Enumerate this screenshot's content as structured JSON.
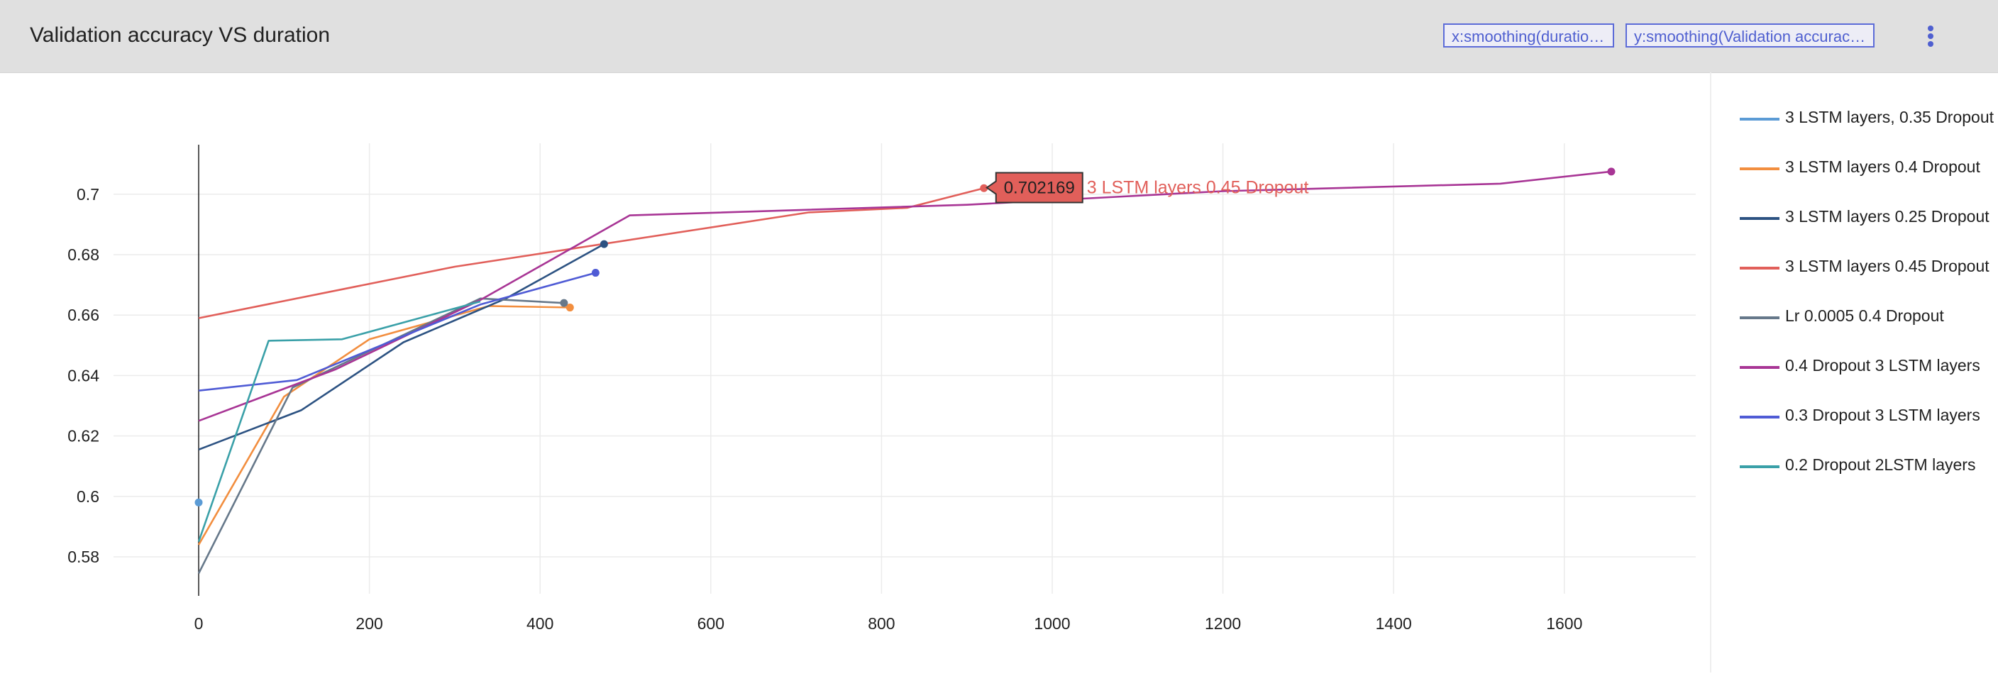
{
  "header": {
    "title": "Validation accuracy VS duration",
    "x_chip": "x:smoothing(duratio…",
    "y_chip": "y:smoothing(Validation accurac…",
    "menu_icon": "more-vert-icon"
  },
  "tooltip": {
    "value": "0.702169",
    "label": "3 LSTM layers 0.45 Dropout",
    "series_index": 3,
    "x": 920,
    "y": 0.702169
  },
  "chart_data": {
    "type": "line",
    "title": "Validation accuracy VS duration",
    "xlabel": "",
    "ylabel": "",
    "xlim": [
      -100,
      1760
    ],
    "ylim": [
      0.569,
      0.72
    ],
    "x_ticks": [
      0,
      200,
      400,
      600,
      800,
      1000,
      1200,
      1400,
      1600
    ],
    "y_ticks": [
      0.58,
      0.6,
      0.62,
      0.64,
      0.66,
      0.68,
      0.7
    ],
    "x_tick_labels": [
      "0",
      "200",
      "400",
      "600",
      "800",
      "1000",
      "1200",
      "1400",
      "1600"
    ],
    "y_tick_labels": [
      "0.58",
      "0.6",
      "0.62",
      "0.64",
      "0.66",
      "0.68",
      "0.7"
    ],
    "grid": true,
    "legend_position": "right",
    "series": [
      {
        "name": "3 LSTM layers, 0.35 Dropout",
        "color": "#5b9bd5",
        "points": [
          [
            0,
            0.598
          ]
        ],
        "end_marker": true
      },
      {
        "name": "3 LSTM layers 0.4 Dropout",
        "color": "#f28e3f",
        "points": [
          [
            0,
            0.584
          ],
          [
            100,
            0.633
          ],
          [
            200,
            0.652
          ],
          [
            340,
            0.663
          ],
          [
            435,
            0.6625
          ]
        ],
        "end_marker": true
      },
      {
        "name": "3 LSTM layers 0.25 Dropout",
        "color": "#2c5282",
        "points": [
          [
            0,
            0.6155
          ],
          [
            120,
            0.6285
          ],
          [
            240,
            0.651
          ],
          [
            360,
            0.6655
          ],
          [
            475,
            0.6835
          ]
        ],
        "end_marker": true
      },
      {
        "name": "3 LSTM layers 0.45 Dropout",
        "color": "#e15f5a",
        "points": [
          [
            0,
            0.659
          ],
          [
            300,
            0.676
          ],
          [
            715,
            0.694
          ],
          [
            830,
            0.6955
          ],
          [
            920,
            0.702
          ]
        ],
        "end_marker": true
      },
      {
        "name": "Lr 0.0005 0.4 Dropout",
        "color": "#66788a",
        "points": [
          [
            0,
            0.5745
          ],
          [
            110,
            0.636
          ],
          [
            330,
            0.6655
          ],
          [
            428,
            0.664
          ]
        ],
        "end_marker": true
      },
      {
        "name": "0.4 Dropout 3 LSTM layers",
        "color": "#a83595",
        "points": [
          [
            0,
            0.625
          ],
          [
            160,
            0.642
          ],
          [
            330,
            0.665
          ],
          [
            505,
            0.693
          ],
          [
            900,
            0.6965
          ],
          [
            1200,
            0.701
          ],
          [
            1525,
            0.7035
          ],
          [
            1655,
            0.7075
          ]
        ],
        "end_marker": true
      },
      {
        "name": "0.3 Dropout 3 LSTM layers",
        "color": "#4f5bd5",
        "points": [
          [
            0,
            0.635
          ],
          [
            115,
            0.6385
          ],
          [
            330,
            0.6635
          ],
          [
            465,
            0.674
          ]
        ],
        "end_marker": true
      },
      {
        "name": "0.2 Dropout 2LSTM layers",
        "color": "#3aa0a8",
        "points": [
          [
            0,
            0.585
          ],
          [
            82,
            0.6515
          ],
          [
            168,
            0.652
          ],
          [
            330,
            0.6645
          ]
        ],
        "end_marker": false
      }
    ]
  }
}
